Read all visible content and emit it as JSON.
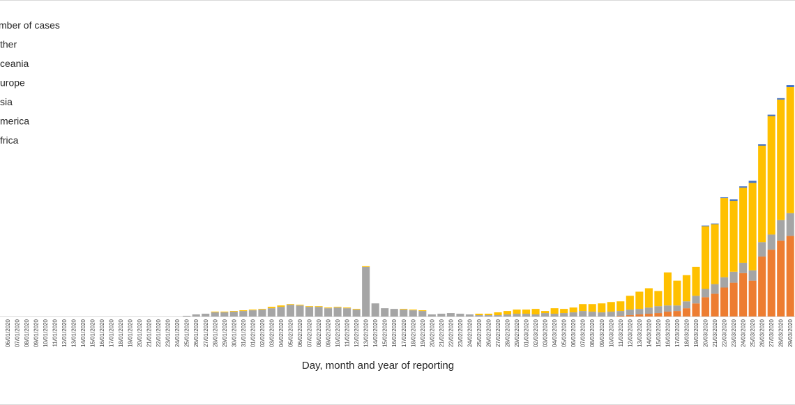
{
  "chart_data": {
    "type": "bar",
    "stacked": true,
    "xlabel": "Day, month and year of reporting",
    "ylabel": "",
    "legend": {
      "placement": "left",
      "entries": [
        "mber of cases",
        "ther",
        "ceania",
        "urope",
        "sia",
        "merica",
        "frica"
      ]
    },
    "categories": [
      "06/01/2020",
      "07/01/2020",
      "08/01/2020",
      "09/01/2020",
      "10/01/2020",
      "11/01/2020",
      "12/01/2020",
      "13/01/2020",
      "14/01/2020",
      "15/01/2020",
      "16/01/2020",
      "17/01/2020",
      "18/01/2020",
      "19/01/2020",
      "20/01/2020",
      "21/01/2020",
      "22/01/2020",
      "23/01/2020",
      "24/01/2020",
      "25/01/2020",
      "26/01/2020",
      "27/01/2020",
      "28/01/2020",
      "29/01/2020",
      "30/01/2020",
      "31/01/2020",
      "01/02/2020",
      "02/02/2020",
      "03/02/2020",
      "04/02/2020",
      "05/02/2020",
      "06/02/2020",
      "07/02/2020",
      "08/02/2020",
      "09/02/2020",
      "10/02/2020",
      "11/02/2020",
      "12/02/2020",
      "13/02/2020",
      "14/02/2020",
      "15/02/2020",
      "16/02/2020",
      "17/02/2020",
      "18/02/2020",
      "19/02/2020",
      "20/02/2020",
      "21/02/2020",
      "22/02/2020",
      "23/02/2020",
      "24/02/2020",
      "25/02/2020",
      "26/02/2020",
      "27/02/2020",
      "28/02/2020",
      "29/02/2020",
      "01/03/2020",
      "02/03/2020",
      "03/03/2020",
      "04/03/2020",
      "05/03/2020",
      "06/03/2020",
      "07/03/2020",
      "08/03/2020",
      "09/03/2020",
      "10/03/2020",
      "11/03/2020",
      "12/03/2020",
      "13/03/2020",
      "14/03/2020",
      "15/03/2020",
      "16/03/2020",
      "17/03/2020",
      "18/03/2020",
      "19/03/2020",
      "20/03/2020",
      "21/03/2020",
      "22/03/2020",
      "23/03/2020",
      "24/03/2020",
      "25/03/2020",
      "26/03/2020",
      "27/03/2020",
      "28/03/2020",
      "29/03/2020"
    ],
    "ylim": [
      0,
      330
    ],
    "series": [
      {
        "name": "frica",
        "color": "#70ad47",
        "values": [
          0,
          0,
          0,
          0,
          0,
          0,
          0,
          0,
          0,
          0,
          0,
          0,
          0,
          0,
          0,
          0,
          0,
          0,
          0,
          0,
          0,
          0,
          0,
          0,
          0,
          0,
          0,
          0,
          0,
          0,
          0,
          0,
          0,
          0,
          0,
          0,
          0,
          0,
          0,
          0,
          0,
          0,
          0,
          0,
          0,
          0,
          0,
          0,
          0,
          0,
          0,
          0,
          0,
          0,
          0,
          0,
          0,
          0,
          0,
          0,
          0,
          0,
          0,
          0,
          0,
          0,
          0,
          0,
          0,
          0,
          0,
          0,
          0,
          0,
          0,
          0,
          0,
          0,
          0,
          0,
          0,
          0,
          0,
          0
        ]
      },
      {
        "name": "merica",
        "color": "#ed7d31",
        "values": [
          0,
          0,
          0,
          0,
          0,
          0,
          0,
          0,
          0,
          0,
          0,
          0,
          0,
          0,
          0,
          0,
          0,
          0,
          0,
          0,
          0,
          0,
          0,
          0,
          0,
          0,
          0,
          0,
          0,
          0,
          0,
          0,
          0,
          0,
          0,
          0,
          0,
          0,
          0,
          0,
          0,
          0,
          0,
          0,
          0,
          0,
          0,
          0,
          0,
          0,
          0,
          0,
          0,
          0,
          0,
          0,
          0,
          0,
          0,
          0,
          0,
          0,
          0,
          0,
          0,
          1,
          2,
          3,
          4,
          5,
          7,
          8,
          12,
          19,
          28,
          33,
          42,
          49,
          63,
          52,
          87,
          97,
          110,
          117
        ]
      },
      {
        "name": "sia",
        "color": "#a5a5a5",
        "values": [
          0,
          0,
          0,
          0,
          0,
          0,
          0,
          0,
          0,
          0,
          0,
          0,
          0,
          0,
          0,
          0,
          0,
          0,
          0,
          1,
          3,
          4,
          6,
          6,
          7,
          8,
          9,
          10,
          12,
          14,
          17,
          16,
          14,
          14,
          12,
          13,
          12,
          10,
          72,
          19,
          12,
          11,
          10,
          9,
          8,
          3,
          4,
          5,
          4,
          3,
          2,
          2,
          2,
          3,
          4,
          4,
          3,
          5,
          4,
          5,
          6,
          8,
          7,
          6,
          7,
          7,
          8,
          8,
          9,
          10,
          9,
          8,
          10,
          11,
          12,
          14,
          15,
          16,
          15,
          15,
          21,
          22,
          30,
          33
        ]
      },
      {
        "name": "urope",
        "color": "#ffc000",
        "values": [
          0,
          0,
          0,
          0,
          0,
          0,
          0,
          0,
          0,
          0,
          0,
          0,
          0,
          0,
          0,
          0,
          0,
          0,
          0,
          0,
          0,
          0,
          1,
          1,
          1,
          1,
          1,
          1,
          2,
          2,
          1,
          1,
          1,
          1,
          1,
          1,
          1,
          1,
          1,
          0,
          0,
          0,
          1,
          1,
          1,
          0,
          0,
          0,
          0,
          0,
          2,
          2,
          4,
          5,
          6,
          6,
          8,
          3,
          8,
          6,
          7,
          10,
          11,
          13,
          14,
          14,
          20,
          25,
          28,
          22,
          48,
          36,
          38,
          42,
          91,
          87,
          115,
          103,
          109,
          127,
          140,
          172,
          175,
          183
        ]
      },
      {
        "name": "ceania",
        "color": "#4472c4",
        "values": [
          0,
          0,
          0,
          0,
          0,
          0,
          0,
          0,
          0,
          0,
          0,
          0,
          0,
          0,
          0,
          0,
          0,
          0,
          0,
          0,
          0,
          0,
          0,
          0,
          0,
          0,
          0,
          0,
          0,
          0,
          0,
          0,
          0,
          0,
          0,
          0,
          0,
          0,
          0,
          0,
          0,
          0,
          0,
          0,
          0,
          0,
          0,
          0,
          0,
          0,
          0,
          0,
          0,
          0,
          0,
          0,
          0,
          0,
          0,
          0,
          0,
          0,
          0,
          0,
          0,
          0,
          0,
          0,
          0,
          0,
          0,
          0,
          0,
          0,
          1,
          1,
          1,
          2,
          2,
          3,
          2,
          2,
          2,
          3
        ]
      },
      {
        "name": "ther",
        "color": "#5b9bd5",
        "values": [
          0,
          0,
          0,
          0,
          0,
          0,
          0,
          0,
          0,
          0,
          0,
          0,
          0,
          0,
          0,
          0,
          0,
          0,
          0,
          0,
          0,
          0,
          0,
          0,
          0,
          0,
          0,
          0,
          0,
          0,
          0,
          0,
          0,
          0,
          0,
          0,
          0,
          0,
          0,
          0,
          0,
          0,
          0,
          0,
          0,
          0,
          0,
          0,
          0,
          0,
          0,
          0,
          0,
          0,
          0,
          0,
          0,
          0,
          0,
          0,
          0,
          0,
          0,
          0,
          0,
          0,
          0,
          0,
          0,
          0,
          0,
          0,
          0,
          0,
          0,
          0,
          0,
          0,
          0,
          0,
          0,
          0,
          0,
          0
        ]
      }
    ]
  }
}
